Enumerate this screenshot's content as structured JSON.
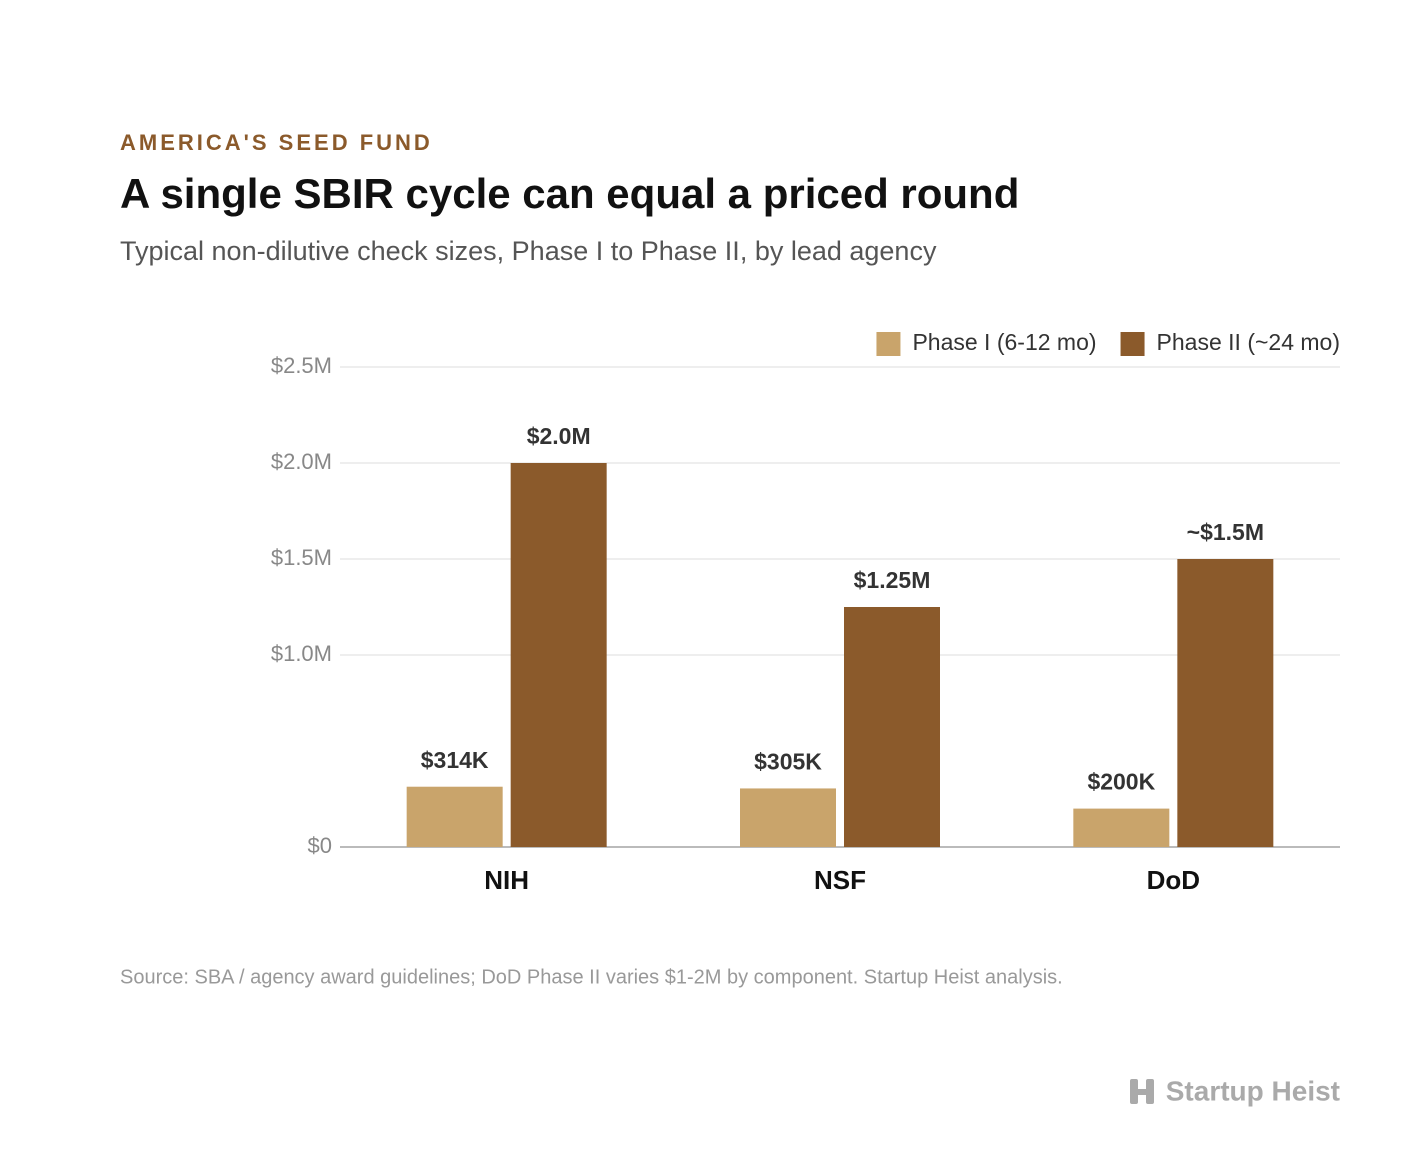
{
  "chart_data": {
    "type": "bar",
    "eyebrow": "AMERICA'S SEED FUND",
    "title": "A single SBIR cycle can equal a priced round",
    "subtitle": "Typical non-dilutive check sizes, Phase I to Phase II, by lead agency",
    "categories": [
      "NIH",
      "NSF",
      "DoD"
    ],
    "series": [
      {
        "name": "Phase I (6-12 mo)",
        "color": "#c9a46b",
        "values": [
          314000,
          305000,
          200000
        ],
        "value_labels": [
          "$314K",
          "$305K",
          "$200K"
        ]
      },
      {
        "name": "Phase II (~24 mo)",
        "color": "#8b5a2b",
        "values": [
          2000000,
          1250000,
          1500000
        ],
        "value_labels": [
          "$2.0M",
          "$1.25M",
          "~$1.5M"
        ]
      }
    ],
    "ylim": [
      0,
      2500000
    ],
    "yticks": [
      {
        "value": 0,
        "label": "$0"
      },
      {
        "value": 1000000,
        "label": "$1.0M"
      },
      {
        "value": 1500000,
        "label": "$1.5M"
      },
      {
        "value": 2000000,
        "label": "$2.0M"
      },
      {
        "value": 2500000,
        "label": "$2.5M"
      }
    ],
    "grid": true,
    "legend": "top-right",
    "source": "Source: SBA / agency award guidelines; DoD Phase II varies $1-2M by component. Startup Heist analysis.",
    "brand": "Startup Heist"
  }
}
